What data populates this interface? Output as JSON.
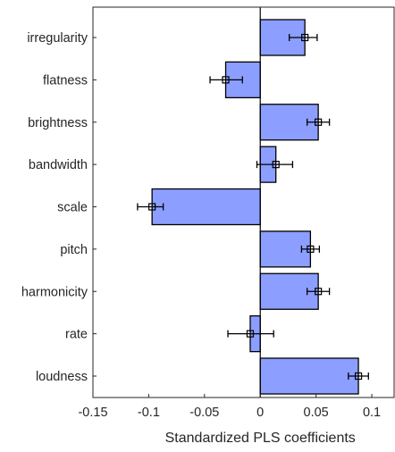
{
  "chart_data": {
    "type": "bar",
    "orientation": "horizontal",
    "title": "",
    "xlabel": "Standardized PLS coefficients",
    "ylabel": "",
    "xlim": [
      -0.15,
      0.12
    ],
    "xticks": [
      -0.15,
      -0.1,
      -0.05,
      0,
      0.05,
      0.1
    ],
    "xtick_labels": [
      "-0.15",
      "-0.1",
      "-0.05",
      "0",
      "0.05",
      "0.1"
    ],
    "categories": [
      "irregularity",
      "flatness",
      "brightness",
      "bandwidth",
      "scale",
      "pitch",
      "harmonicity",
      "rate",
      "loudness"
    ],
    "values": [
      0.04,
      -0.031,
      0.052,
      0.014,
      -0.097,
      0.045,
      0.052,
      -0.009,
      0.088
    ],
    "markers": [
      0.04,
      -0.031,
      0.052,
      0.014,
      -0.097,
      0.045,
      0.052,
      -0.009,
      0.088
    ],
    "error_low": [
      0.026,
      -0.045,
      0.042,
      -0.003,
      -0.11,
      0.037,
      0.042,
      -0.029,
      0.079
    ],
    "error_high": [
      0.051,
      -0.016,
      0.062,
      0.029,
      -0.087,
      0.053,
      0.062,
      0.012,
      0.097
    ],
    "grid": false,
    "bar_color": "#8c9eff",
    "edge_color": "#000000",
    "frame_color": "#262626"
  }
}
